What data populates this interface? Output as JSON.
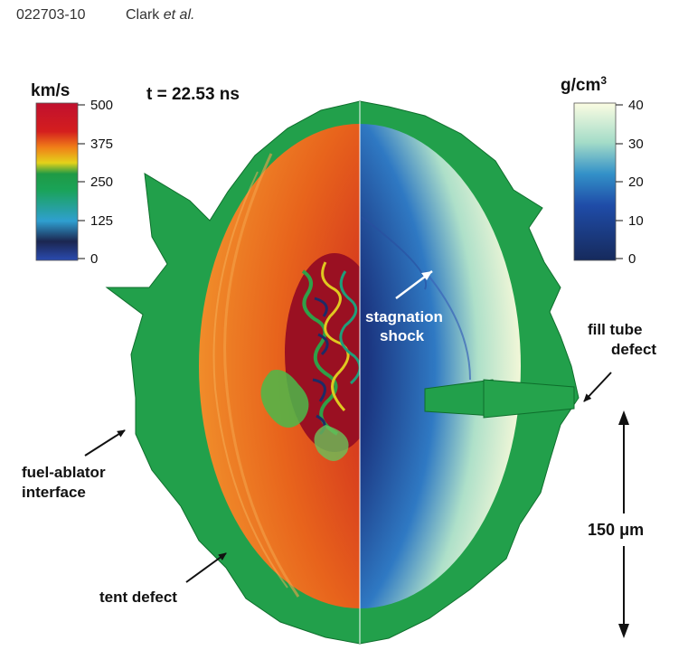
{
  "header": {
    "page_id": "022703-10",
    "authors": "Clark",
    "etal": "et al."
  },
  "figure": {
    "time_label": "t = 22.53 ns",
    "velocity_scale": {
      "unit": "km/s",
      "ticks": [
        "500",
        "375",
        "250",
        "125",
        "0"
      ],
      "colors": [
        "#1c3fa0",
        "#1b2650",
        "#2f9fd0",
        "#1aa357",
        "#e5d21a",
        "#f07d18",
        "#d41e1e",
        "#a0102a"
      ]
    },
    "density_scale": {
      "unit": "g/cm",
      "unit_sup": "3",
      "ticks": [
        "40",
        "30",
        "20",
        "10",
        "0"
      ],
      "colors": [
        "#142a62",
        "#1e4aa5",
        "#2f7fc8",
        "#66c4d2",
        "#c5ecd0",
        "#fbfce0"
      ]
    },
    "annotations": {
      "stagnation_1": "stagnation",
      "stagnation_2": "shock",
      "fill_tube_1": "fill tube",
      "fill_tube_2": "defect",
      "fuel_ablator_1": "fuel-ablator",
      "fuel_ablator_2": "interface",
      "tent_defect": "tent defect",
      "scale_value": "150",
      "scale_unit": "μm"
    }
  }
}
